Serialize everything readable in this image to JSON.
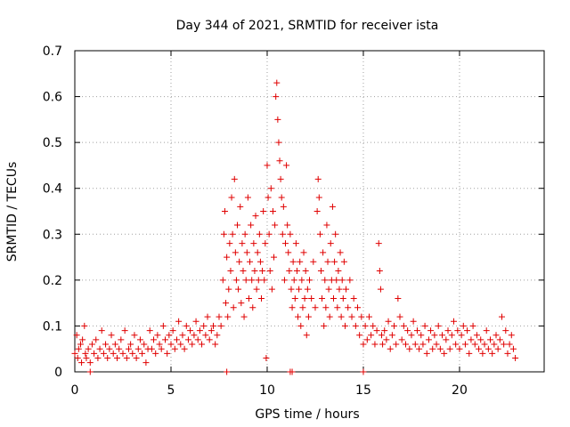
{
  "chart_data": {
    "type": "scatter",
    "title": "Day 344 of 2021, SRMTID for receiver ista",
    "xlabel": "GPS time / hours",
    "ylabel": "SRMTID / TECUs",
    "xlim": [
      0,
      24.4
    ],
    "ylim": [
      0,
      0.7
    ],
    "x_ticks": [
      0,
      5,
      10,
      15,
      20
    ],
    "y_ticks": [
      0,
      0.1,
      0.2,
      0.3,
      0.4,
      0.5,
      0.6,
      0.7
    ],
    "x_tick_labels": [
      "0",
      "5",
      "10",
      "15",
      "20"
    ],
    "y_tick_labels": [
      "0",
      "0.1",
      "0.2",
      "0.3",
      "0.4",
      "0.5",
      "0.6",
      "0.7"
    ],
    "grid": true,
    "marker": "plus",
    "series": [
      {
        "name": "SRMTID",
        "color": "#e00000",
        "points": [
          [
            0.0,
            0.04
          ],
          [
            0.1,
            0.08
          ],
          [
            0.15,
            0.03
          ],
          [
            0.2,
            0.05
          ],
          [
            0.3,
            0.06
          ],
          [
            0.35,
            0.02
          ],
          [
            0.4,
            0.07
          ],
          [
            0.5,
            0.1
          ],
          [
            0.55,
            0.04
          ],
          [
            0.6,
            0.03
          ],
          [
            0.7,
            0.05
          ],
          [
            0.8,
            0.02
          ],
          [
            0.9,
            0.06
          ],
          [
            1.0,
            0.04
          ],
          [
            1.1,
            0.07
          ],
          [
            1.2,
            0.03
          ],
          [
            1.3,
            0.05
          ],
          [
            1.4,
            0.09
          ],
          [
            1.5,
            0.04
          ],
          [
            1.6,
            0.06
          ],
          [
            1.7,
            0.03
          ],
          [
            1.8,
            0.05
          ],
          [
            1.9,
            0.08
          ],
          [
            2.0,
            0.04
          ],
          [
            2.1,
            0.06
          ],
          [
            2.2,
            0.03
          ],
          [
            2.3,
            0.05
          ],
          [
            2.4,
            0.07
          ],
          [
            2.5,
            0.04
          ],
          [
            2.6,
            0.09
          ],
          [
            2.7,
            0.03
          ],
          [
            2.8,
            0.05
          ],
          [
            2.9,
            0.06
          ],
          [
            3.0,
            0.04
          ],
          [
            3.1,
            0.08
          ],
          [
            3.2,
            0.03
          ],
          [
            3.3,
            0.05
          ],
          [
            3.4,
            0.07
          ],
          [
            3.5,
            0.04
          ],
          [
            3.6,
            0.06
          ],
          [
            3.7,
            0.02
          ],
          [
            3.8,
            0.05
          ],
          [
            3.9,
            0.09
          ],
          [
            4.0,
            0.05
          ],
          [
            4.1,
            0.07
          ],
          [
            4.2,
            0.04
          ],
          [
            4.3,
            0.08
          ],
          [
            4.4,
            0.06
          ],
          [
            4.5,
            0.05
          ],
          [
            4.6,
            0.1
          ],
          [
            4.7,
            0.07
          ],
          [
            4.8,
            0.04
          ],
          [
            4.9,
            0.08
          ],
          [
            5.0,
            0.06
          ],
          [
            5.1,
            0.09
          ],
          [
            5.2,
            0.05
          ],
          [
            5.3,
            0.07
          ],
          [
            5.4,
            0.11
          ],
          [
            5.5,
            0.06
          ],
          [
            5.6,
            0.08
          ],
          [
            5.7,
            0.05
          ],
          [
            5.8,
            0.1
          ],
          [
            5.9,
            0.07
          ],
          [
            6.0,
            0.09
          ],
          [
            6.1,
            0.06
          ],
          [
            6.2,
            0.08
          ],
          [
            6.3,
            0.11
          ],
          [
            6.4,
            0.07
          ],
          [
            6.5,
            0.09
          ],
          [
            6.6,
            0.06
          ],
          [
            6.7,
            0.1
          ],
          [
            6.8,
            0.08
          ],
          [
            6.9,
            0.12
          ],
          [
            7.0,
            0.07
          ],
          [
            7.1,
            0.09
          ],
          [
            7.2,
            0.1
          ],
          [
            7.3,
            0.06
          ],
          [
            7.4,
            0.08
          ],
          [
            7.5,
            0.12
          ],
          [
            7.6,
            0.1
          ],
          [
            7.7,
            0.2
          ],
          [
            7.75,
            0.3
          ],
          [
            7.8,
            0.35
          ],
          [
            7.85,
            0.15
          ],
          [
            7.9,
            0.25
          ],
          [
            7.95,
            0.12
          ],
          [
            8.0,
            0.18
          ],
          [
            8.05,
            0.28
          ],
          [
            8.1,
            0.22
          ],
          [
            8.15,
            0.38
          ],
          [
            8.2,
            0.3
          ],
          [
            8.25,
            0.14
          ],
          [
            8.3,
            0.42
          ],
          [
            8.35,
            0.26
          ],
          [
            8.4,
            0.2
          ],
          [
            8.45,
            0.32
          ],
          [
            8.5,
            0.18
          ],
          [
            8.55,
            0.24
          ],
          [
            8.6,
            0.36
          ],
          [
            8.65,
            0.15
          ],
          [
            8.7,
            0.28
          ],
          [
            8.75,
            0.22
          ],
          [
            8.8,
            0.12
          ],
          [
            8.85,
            0.3
          ],
          [
            8.9,
            0.2
          ],
          [
            8.95,
            0.26
          ],
          [
            9.0,
            0.38
          ],
          [
            9.05,
            0.16
          ],
          [
            9.1,
            0.24
          ],
          [
            9.15,
            0.32
          ],
          [
            9.2,
            0.2
          ],
          [
            9.25,
            0.14
          ],
          [
            9.3,
            0.28
          ],
          [
            9.35,
            0.22
          ],
          [
            9.4,
            0.34
          ],
          [
            9.45,
            0.18
          ],
          [
            9.5,
            0.26
          ],
          [
            9.55,
            0.2
          ],
          [
            9.6,
            0.3
          ],
          [
            9.65,
            0.24
          ],
          [
            9.7,
            0.16
          ],
          [
            9.75,
            0.22
          ],
          [
            9.8,
            0.35
          ],
          [
            9.85,
            0.2
          ],
          [
            9.9,
            0.28
          ],
          [
            9.95,
            0.03
          ],
          [
            10.0,
            0.45
          ],
          [
            10.05,
            0.38
          ],
          [
            10.1,
            0.3
          ],
          [
            10.15,
            0.22
          ],
          [
            10.2,
            0.4
          ],
          [
            10.25,
            0.18
          ],
          [
            10.3,
            0.35
          ],
          [
            10.35,
            0.25
          ],
          [
            10.4,
            0.32
          ],
          [
            10.45,
            0.6
          ],
          [
            10.5,
            0.63
          ],
          [
            10.55,
            0.55
          ],
          [
            10.6,
            0.5
          ],
          [
            10.65,
            0.46
          ],
          [
            10.7,
            0.42
          ],
          [
            10.75,
            0.38
          ],
          [
            10.8,
            0.3
          ],
          [
            10.85,
            0.36
          ],
          [
            10.9,
            0.2
          ],
          [
            10.95,
            0.28
          ],
          [
            11.0,
            0.45
          ],
          [
            11.05,
            0.32
          ],
          [
            11.1,
            0.26
          ],
          [
            11.15,
            0.22
          ],
          [
            11.2,
            0.3
          ],
          [
            11.25,
            0.18
          ],
          [
            11.3,
            0.14
          ],
          [
            11.35,
            0.24
          ],
          [
            11.4,
            0.2
          ],
          [
            11.45,
            0.16
          ],
          [
            11.5,
            0.28
          ],
          [
            11.55,
            0.22
          ],
          [
            11.6,
            0.12
          ],
          [
            11.65,
            0.18
          ],
          [
            11.7,
            0.24
          ],
          [
            11.75,
            0.1
          ],
          [
            11.8,
            0.2
          ],
          [
            11.85,
            0.14
          ],
          [
            11.9,
            0.26
          ],
          [
            11.95,
            0.16
          ],
          [
            12.0,
            0.22
          ],
          [
            12.05,
            0.08
          ],
          [
            12.1,
            0.18
          ],
          [
            12.15,
            0.12
          ],
          [
            12.2,
            0.2
          ],
          [
            12.3,
            0.16
          ],
          [
            12.4,
            0.24
          ],
          [
            12.5,
            0.14
          ],
          [
            12.6,
            0.35
          ],
          [
            12.65,
            0.42
          ],
          [
            12.7,
            0.38
          ],
          [
            12.75,
            0.3
          ],
          [
            12.8,
            0.22
          ],
          [
            12.85,
            0.16
          ],
          [
            12.9,
            0.26
          ],
          [
            12.95,
            0.1
          ],
          [
            13.0,
            0.2
          ],
          [
            13.05,
            0.14
          ],
          [
            13.1,
            0.32
          ],
          [
            13.15,
            0.24
          ],
          [
            13.2,
            0.18
          ],
          [
            13.25,
            0.12
          ],
          [
            13.3,
            0.28
          ],
          [
            13.35,
            0.2
          ],
          [
            13.4,
            0.36
          ],
          [
            13.45,
            0.16
          ],
          [
            13.5,
            0.24
          ],
          [
            13.55,
            0.3
          ],
          [
            13.6,
            0.2
          ],
          [
            13.65,
            0.14
          ],
          [
            13.7,
            0.22
          ],
          [
            13.75,
            0.18
          ],
          [
            13.8,
            0.26
          ],
          [
            13.85,
            0.12
          ],
          [
            13.9,
            0.2
          ],
          [
            13.95,
            0.16
          ],
          [
            14.0,
            0.24
          ],
          [
            14.05,
            0.1
          ],
          [
            14.1,
            0.18
          ],
          [
            14.2,
            0.14
          ],
          [
            14.3,
            0.2
          ],
          [
            14.4,
            0.12
          ],
          [
            14.5,
            0.16
          ],
          [
            14.6,
            0.1
          ],
          [
            14.7,
            0.14
          ],
          [
            14.8,
            0.08
          ],
          [
            14.9,
            0.12
          ],
          [
            15.0,
            0.06
          ],
          [
            15.1,
            0.1
          ],
          [
            15.2,
            0.07
          ],
          [
            15.3,
            0.12
          ],
          [
            15.4,
            0.08
          ],
          [
            15.5,
            0.1
          ],
          [
            15.6,
            0.06
          ],
          [
            15.7,
            0.09
          ],
          [
            15.8,
            0.28
          ],
          [
            15.85,
            0.22
          ],
          [
            15.9,
            0.18
          ],
          [
            15.95,
            0.08
          ],
          [
            16.0,
            0.06
          ],
          [
            16.1,
            0.09
          ],
          [
            16.2,
            0.07
          ],
          [
            16.3,
            0.11
          ],
          [
            16.4,
            0.05
          ],
          [
            16.5,
            0.08
          ],
          [
            16.6,
            0.1
          ],
          [
            16.7,
            0.06
          ],
          [
            16.8,
            0.16
          ],
          [
            16.9,
            0.12
          ],
          [
            17.0,
            0.07
          ],
          [
            17.1,
            0.1
          ],
          [
            17.2,
            0.06
          ],
          [
            17.3,
            0.09
          ],
          [
            17.4,
            0.05
          ],
          [
            17.5,
            0.08
          ],
          [
            17.6,
            0.11
          ],
          [
            17.7,
            0.06
          ],
          [
            17.8,
            0.09
          ],
          [
            17.9,
            0.05
          ],
          [
            18.0,
            0.08
          ],
          [
            18.1,
            0.06
          ],
          [
            18.2,
            0.1
          ],
          [
            18.3,
            0.04
          ],
          [
            18.4,
            0.07
          ],
          [
            18.5,
            0.09
          ],
          [
            18.6,
            0.05
          ],
          [
            18.7,
            0.08
          ],
          [
            18.8,
            0.06
          ],
          [
            18.9,
            0.1
          ],
          [
            19.0,
            0.05
          ],
          [
            19.1,
            0.08
          ],
          [
            19.2,
            0.04
          ],
          [
            19.3,
            0.07
          ],
          [
            19.4,
            0.09
          ],
          [
            19.5,
            0.05
          ],
          [
            19.6,
            0.08
          ],
          [
            19.7,
            0.11
          ],
          [
            19.8,
            0.06
          ],
          [
            19.9,
            0.09
          ],
          [
            20.0,
            0.05
          ],
          [
            20.1,
            0.08
          ],
          [
            20.2,
            0.1
          ],
          [
            20.3,
            0.06
          ],
          [
            20.4,
            0.09
          ],
          [
            20.5,
            0.04
          ],
          [
            20.6,
            0.07
          ],
          [
            20.7,
            0.1
          ],
          [
            20.8,
            0.06
          ],
          [
            20.9,
            0.08
          ],
          [
            21.0,
            0.05
          ],
          [
            21.1,
            0.07
          ],
          [
            21.2,
            0.04
          ],
          [
            21.3,
            0.06
          ],
          [
            21.4,
            0.09
          ],
          [
            21.5,
            0.05
          ],
          [
            21.6,
            0.07
          ],
          [
            21.7,
            0.04
          ],
          [
            21.8,
            0.06
          ],
          [
            21.9,
            0.08
          ],
          [
            22.0,
            0.05
          ],
          [
            22.1,
            0.07
          ],
          [
            22.2,
            0.12
          ],
          [
            22.3,
            0.06
          ],
          [
            22.4,
            0.09
          ],
          [
            22.5,
            0.04
          ],
          [
            22.6,
            0.06
          ],
          [
            22.7,
            0.08
          ],
          [
            22.8,
            0.05
          ],
          [
            22.9,
            0.03
          ],
          [
            0.8,
            0.0
          ],
          [
            7.9,
            0.0
          ],
          [
            11.2,
            0.0
          ],
          [
            11.3,
            0.0
          ],
          [
            15.0,
            0.0
          ]
        ]
      }
    ]
  }
}
